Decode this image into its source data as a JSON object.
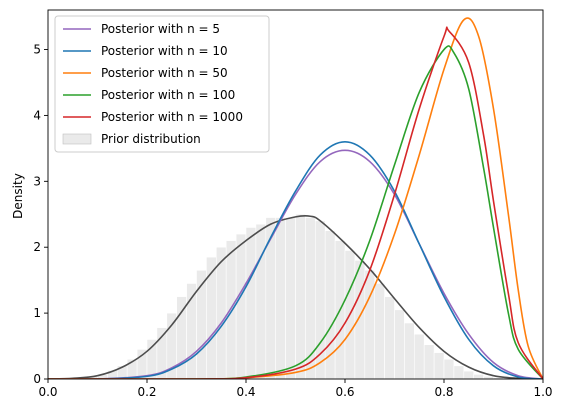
{
  "chart_data": {
    "type": "line",
    "title": "",
    "xlabel": "",
    "ylabel": "Density",
    "xlim": [
      0.0,
      1.0
    ],
    "ylim": [
      0,
      5.6
    ],
    "xticks": [
      "0.0",
      "0.2",
      "0.4",
      "0.6",
      "0.8",
      "1.0"
    ],
    "yticks": [
      "0",
      "1",
      "2",
      "3",
      "4",
      "5"
    ],
    "grid": false,
    "legend_position": "upper-left",
    "series": [
      {
        "name": "Posterior with n = 5",
        "color": "#9467bd",
        "x": [
          0.0,
          0.1,
          0.2,
          0.25,
          0.3,
          0.35,
          0.4,
          0.45,
          0.5,
          0.55,
          0.6,
          0.65,
          0.7,
          0.75,
          0.8,
          0.85,
          0.9,
          0.95,
          1.0
        ],
        "y": [
          0.0,
          0.0,
          0.05,
          0.17,
          0.42,
          0.85,
          1.45,
          2.13,
          2.8,
          3.3,
          3.47,
          3.3,
          2.8,
          2.05,
          1.3,
          0.68,
          0.25,
          0.05,
          0.0
        ]
      },
      {
        "name": "Posterior with n = 10",
        "color": "#1f77b4",
        "x": [
          0.0,
          0.1,
          0.2,
          0.25,
          0.3,
          0.35,
          0.4,
          0.45,
          0.5,
          0.55,
          0.6,
          0.65,
          0.7,
          0.75,
          0.8,
          0.85,
          0.9,
          0.95,
          1.0
        ],
        "y": [
          0.0,
          0.0,
          0.04,
          0.15,
          0.38,
          0.8,
          1.4,
          2.15,
          2.85,
          3.4,
          3.6,
          3.4,
          2.85,
          2.05,
          1.25,
          0.6,
          0.2,
          0.03,
          0.0
        ]
      },
      {
        "name": "Posterior with n = 50",
        "color": "#ff7f0e",
        "x": [
          0.0,
          0.3,
          0.4,
          0.5,
          0.55,
          0.6,
          0.65,
          0.7,
          0.75,
          0.8,
          0.84,
          0.87,
          0.9,
          0.93,
          0.95,
          0.97,
          1.0
        ],
        "y": [
          0.0,
          0.0,
          0.02,
          0.1,
          0.25,
          0.6,
          1.25,
          2.2,
          3.4,
          4.7,
          5.45,
          5.2,
          4.1,
          2.5,
          1.35,
          0.5,
          0.0
        ]
      },
      {
        "name": "Posterior with n = 100",
        "color": "#2ca02c",
        "x": [
          0.0,
          0.3,
          0.4,
          0.5,
          0.55,
          0.6,
          0.65,
          0.7,
          0.75,
          0.8,
          0.82,
          0.85,
          0.88,
          0.9,
          0.93,
          0.95,
          1.0
        ],
        "y": [
          0.0,
          0.0,
          0.03,
          0.2,
          0.55,
          1.2,
          2.1,
          3.25,
          4.35,
          5.0,
          4.95,
          4.4,
          3.2,
          2.3,
          1.0,
          0.45,
          0.0
        ]
      },
      {
        "name": "Posterior with n = 1000",
        "color": "#d62728",
        "x": [
          0.0,
          0.3,
          0.4,
          0.5,
          0.55,
          0.6,
          0.65,
          0.7,
          0.75,
          0.8,
          0.81,
          0.85,
          0.88,
          0.9,
          0.93,
          0.95,
          1.0
        ],
        "y": [
          0.0,
          0.0,
          0.02,
          0.15,
          0.38,
          0.85,
          1.65,
          2.8,
          4.1,
          5.2,
          5.28,
          4.8,
          3.7,
          2.7,
          1.3,
          0.55,
          0.0
        ]
      }
    ],
    "prior": {
      "name": "Prior distribution",
      "type": "histogram",
      "fill_color": "#d9d9d9",
      "edge_color": "#ffffff",
      "kde_color": "#4d4d4d",
      "bin_edges": [
        0.0,
        0.02,
        0.04,
        0.06,
        0.08,
        0.1,
        0.12,
        0.14,
        0.16,
        0.18,
        0.2,
        0.22,
        0.24,
        0.26,
        0.28,
        0.3,
        0.32,
        0.34,
        0.36,
        0.38,
        0.4,
        0.42,
        0.44,
        0.46,
        0.48,
        0.5,
        0.52,
        0.54,
        0.56,
        0.58,
        0.6,
        0.62,
        0.64,
        0.66,
        0.68,
        0.7,
        0.72,
        0.74,
        0.76,
        0.78,
        0.8,
        0.82,
        0.84,
        0.86,
        0.88,
        0.9,
        0.92,
        0.94,
        0.96,
        0.98,
        1.0
      ],
      "heights": [
        0.0,
        0.0,
        0.01,
        0.02,
        0.04,
        0.07,
        0.13,
        0.2,
        0.3,
        0.45,
        0.6,
        0.78,
        1.0,
        1.25,
        1.45,
        1.65,
        1.85,
        2.0,
        2.1,
        2.2,
        2.3,
        2.35,
        2.45,
        2.45,
        2.45,
        2.5,
        2.45,
        2.4,
        2.25,
        2.1,
        1.95,
        1.8,
        1.65,
        1.45,
        1.25,
        1.05,
        0.85,
        0.68,
        0.52,
        0.4,
        0.3,
        0.2,
        0.12,
        0.07,
        0.04,
        0.02,
        0.01,
        0.0,
        0.0,
        0.0
      ],
      "kde_x": [
        0.0,
        0.05,
        0.1,
        0.15,
        0.2,
        0.25,
        0.3,
        0.35,
        0.4,
        0.45,
        0.5,
        0.53,
        0.55,
        0.6,
        0.65,
        0.7,
        0.75,
        0.8,
        0.85,
        0.9,
        0.95,
        1.0
      ],
      "kde_y": [
        0.0,
        0.01,
        0.05,
        0.18,
        0.42,
        0.82,
        1.33,
        1.78,
        2.1,
        2.35,
        2.46,
        2.47,
        2.4,
        2.06,
        1.67,
        1.22,
        0.78,
        0.42,
        0.18,
        0.05,
        0.01,
        0.0
      ]
    }
  }
}
